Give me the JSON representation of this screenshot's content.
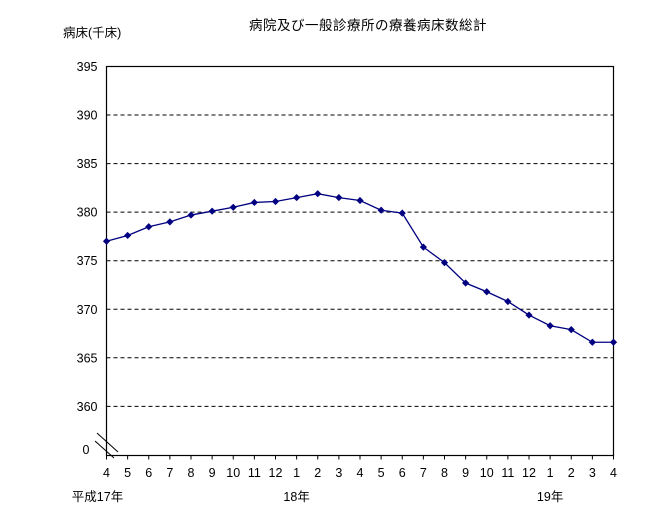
{
  "chart_data": {
    "type": "line",
    "title": "病院及び一般診療所の療養病床数総計",
    "ylabel": "病床(千床)",
    "x_tick_labels": [
      "4",
      "5",
      "6",
      "7",
      "8",
      "9",
      "10",
      "11",
      "12",
      "1",
      "2",
      "3",
      "4",
      "5",
      "6",
      "7",
      "8",
      "9",
      "10",
      "11",
      "12",
      "1",
      "2",
      "3",
      "4"
    ],
    "year_row_labels": [
      {
        "label": "平成17年",
        "tick_index": 0
      },
      {
        "label": "18年",
        "tick_index": 9
      },
      {
        "label": "19年",
        "tick_index": 21
      }
    ],
    "values": [
      377.0,
      377.6,
      378.5,
      379.0,
      379.7,
      380.1,
      380.5,
      381.0,
      381.1,
      381.5,
      381.9,
      381.5,
      381.2,
      380.2,
      379.9,
      376.4,
      374.8,
      372.7,
      371.8,
      370.8,
      369.4,
      368.3,
      367.9,
      366.6,
      366.6
    ],
    "y_ticks": [
      395,
      390,
      385,
      380,
      375,
      370,
      365,
      360
    ],
    "y_origin_label": "0",
    "ylim_display": [
      360,
      395
    ],
    "axis_break": true,
    "grid": "horizontal-dashed",
    "legend": "none",
    "marker": "diamond",
    "line_color": "#000080",
    "axis_color": "#000000",
    "grid_color": "#000000",
    "background_color": "#ffffff"
  }
}
